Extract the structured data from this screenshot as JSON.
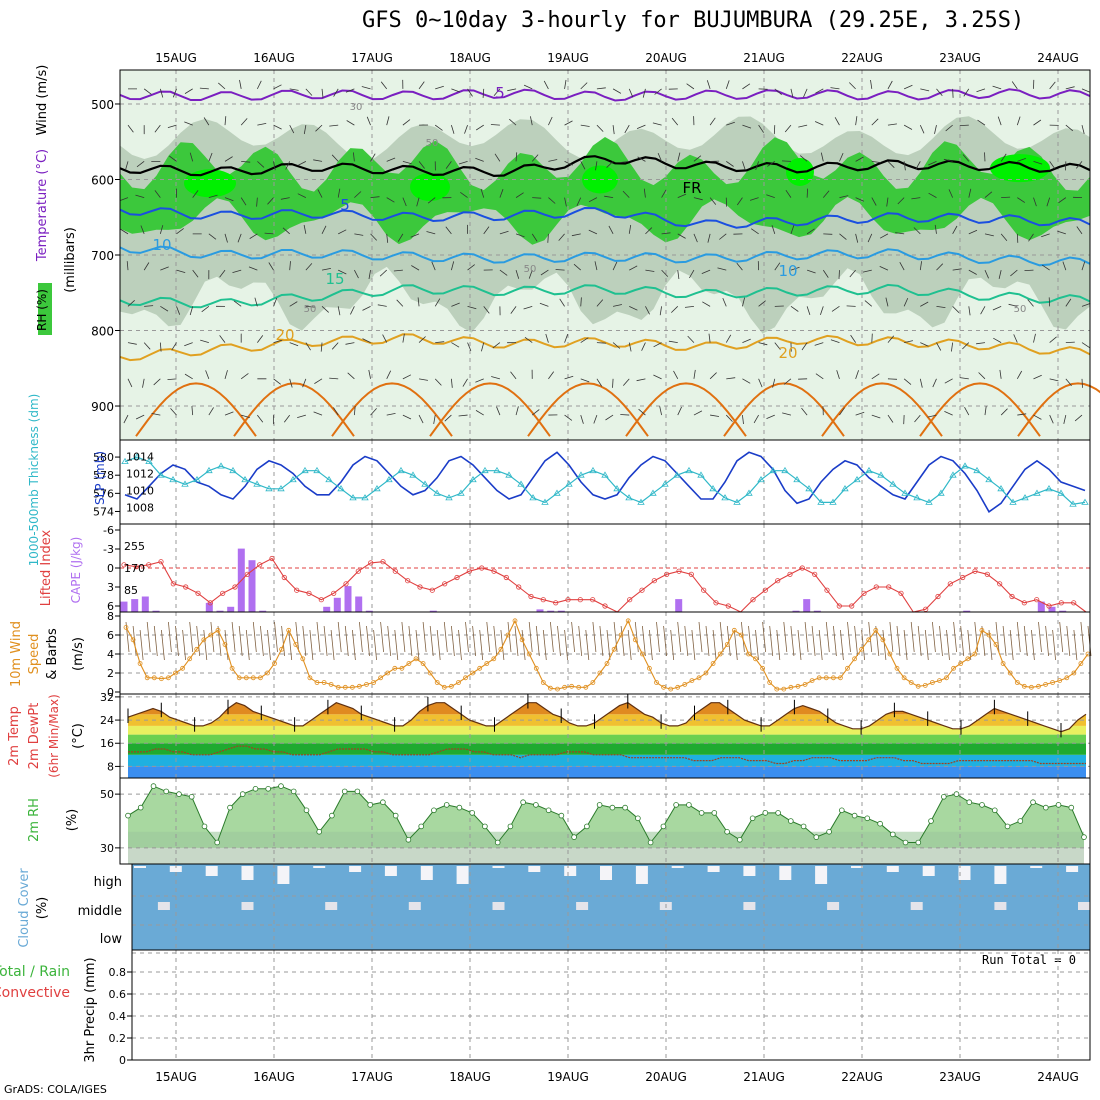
{
  "title": "GFS 0~10day 3-hourly for BUJUMBURA (29.25E, 3.25S)",
  "credit": "GrADS: COLA/IGES",
  "run_total": "Run Total = 0",
  "dates": [
    "15AUG",
    "16AUG",
    "17AUG",
    "18AUG",
    "19AUG",
    "20AUG",
    "21AUG",
    "22AUG",
    "23AUG",
    "24AUG"
  ],
  "colors": {
    "rh_light": "#e6f3e6",
    "rh_mid": "#bcd0bc",
    "rh_green": "#3cc83c",
    "rh_bright": "#00f000",
    "temp5": "#7a1fc0",
    "temp5b": "#1a4fe0",
    "temp10": "#2a9be0",
    "temp15": "#1fc090",
    "temp20": "#e0a020",
    "temp25": "#e07010",
    "slp": "#1a3cc8",
    "thick": "#30b8c8",
    "cape": "#b070f0",
    "li": "#e04040",
    "wind10": "#e09020",
    "rh2m": "#3cb43c",
    "cloud": "#6aaad6"
  },
  "chart_data": [
    {
      "type": "heatmap",
      "name": "upper-air-cross-section",
      "ylabel_rh": "RH (%)",
      "ylabel_temp": "Temperature (°C)",
      "ylabel_wind": "Wind (m/s)",
      "ylabel_axis": "(millibars)",
      "yticks": [
        500,
        600,
        700,
        800,
        900
      ],
      "ylim": [
        455,
        945
      ],
      "contour_labels": [
        "5",
        "5",
        "10",
        "10",
        "15",
        "20",
        "20",
        "FR",
        "30",
        "50",
        "50",
        "50",
        "50"
      ],
      "isotherms": [
        {
          "label": "5",
          "level_mb": [
            488,
            490,
            487,
            489,
            486,
            490,
            488,
            487,
            489,
            486,
            488
          ]
        },
        {
          "label": "FR",
          "level_mb": [
            585,
            590,
            583,
            588,
            590,
            572,
            582,
            585,
            580,
            582,
            586
          ]
        },
        {
          "label": "5",
          "level_mb": [
            640,
            648,
            645,
            650,
            648,
            642,
            660,
            655,
            650,
            652,
            658
          ]
        },
        {
          "label": "10",
          "level_mb": [
            690,
            700,
            698,
            702,
            705,
            702,
            705,
            700,
            698,
            706,
            710
          ]
        },
        {
          "label": "15",
          "level_mb": [
            760,
            765,
            755,
            745,
            748,
            745,
            752,
            748,
            745,
            755,
            760
          ]
        },
        {
          "label": "20",
          "level_mb": [
            835,
            825,
            815,
            810,
            818,
            815,
            822,
            812,
            815,
            820,
            830
          ]
        }
      ]
    },
    {
      "type": "line",
      "name": "sea-level-pressure-and-thickness",
      "ylabel_left": "1000-500mb Thickness (dm)",
      "ylabel_right": "SLP (mb)",
      "yticks_left": [
        574,
        576,
        578,
        580
      ],
      "yticks_right": [
        1008,
        1010,
        1012,
        1014
      ],
      "series": [
        {
          "name": "SLP",
          "axis": "right",
          "values": [
            1009.5,
            1009.0,
            1010.5,
            1012.0,
            1013.0,
            1012.5,
            1011.0,
            1010.5,
            1009.5,
            1009.0,
            1010.5,
            1012.5,
            1013.5,
            1013.0,
            1012.0,
            1010.5,
            1009.5,
            1009.5,
            1011.0,
            1013.0,
            1014.0,
            1013.5,
            1012.0,
            1010.5,
            1009.5,
            1010.0,
            1011.5,
            1013.5,
            1014.0,
            1013.0,
            1011.5,
            1010.0,
            1009.0,
            1009.5,
            1011.5,
            1013.5,
            1014.5,
            1013.0,
            1011.0,
            1009.5,
            1009.0,
            1009.5,
            1011.5,
            1013.0,
            1014.0,
            1013.5,
            1012.0,
            1010.5,
            1009.0,
            1009.0,
            1011.0,
            1013.5,
            1014.5,
            1014.0,
            1012.5,
            1010.0,
            1008.5,
            1009.0,
            1011.0,
            1012.5,
            1013.5,
            1013.0,
            1011.5,
            1010.5,
            1009.5,
            1009.0,
            1011.0,
            1013.0,
            1014.0,
            1013.5,
            1012.0,
            1010.0,
            1007.5,
            1008.5,
            1010.5,
            1012.5,
            1013.5,
            1012.5,
            1011.0,
            1010.5,
            1010.0
          ]
        },
        {
          "name": "Thickness",
          "axis": "left",
          "values": [
            579.5,
            580.0,
            579.5,
            578.0,
            577.5,
            577.0,
            577.5,
            578.5,
            579.0,
            578.5,
            577.5,
            577.0,
            576.5,
            576.5,
            577.5,
            578.5,
            578.5,
            577.5,
            576.5,
            575.5,
            575.5,
            576.5,
            577.5,
            578.5,
            578.0,
            577.0,
            576.0,
            575.5,
            576.0,
            577.5,
            578.5,
            578.5,
            578.0,
            577.0,
            575.5,
            575.0,
            576.0,
            577.0,
            578.0,
            578.5,
            578.0,
            576.5,
            575.5,
            575.0,
            576.0,
            577.0,
            578.0,
            578.5,
            578.0,
            576.5,
            575.5,
            575.0,
            576.0,
            577.5,
            578.5,
            578.5,
            577.5,
            576.5,
            575.0,
            575.0,
            576.5,
            577.5,
            578.5,
            578.0,
            577.0,
            576.0,
            575.5,
            575.0,
            576.0,
            578.0,
            579.0,
            578.5,
            577.5,
            576.5,
            575.0,
            575.5,
            576.0,
            576.5,
            576.0,
            574.8,
            575.0
          ]
        }
      ]
    },
    {
      "type": "bar",
      "name": "cape-and-lifted-index",
      "ylabel_left": "Lifted Index",
      "ylabel_right": "CAPE (J/kg)",
      "yticks_left": [
        "-6",
        "-3",
        "0",
        "3",
        "6"
      ],
      "yticks_right": [
        85,
        170,
        255
      ],
      "series": [
        {
          "name": "CAPE",
          "values": [
            40,
            50,
            60,
            5,
            0,
            0,
            0,
            0,
            35,
            5,
            20,
            245,
            200,
            5,
            0,
            0,
            0,
            0,
            0,
            20,
            55,
            100,
            60,
            5,
            0,
            0,
            0,
            0,
            0,
            5,
            0,
            0,
            0,
            0,
            0,
            0,
            0,
            0,
            0,
            10,
            5,
            5,
            0,
            0,
            0,
            0,
            0,
            0,
            0,
            0,
            0,
            0,
            50,
            0,
            0,
            0,
            0,
            0,
            0,
            0,
            0,
            0,
            0,
            5,
            50,
            5,
            0,
            0,
            0,
            0,
            0,
            0,
            0,
            0,
            0,
            0,
            0,
            0,
            0,
            5,
            0,
            0,
            0,
            0,
            0,
            0,
            40,
            20,
            5,
            0,
            0
          ]
        },
        {
          "name": "Lifted Index",
          "values": [
            -0.5,
            -0.2,
            -0.5,
            -1.0,
            2.5,
            3.0,
            4.0,
            5.5,
            4.0,
            3.0,
            1.0,
            -0.5,
            -1.5,
            1.5,
            3.5,
            4.0,
            5.0,
            4.0,
            2.5,
            0.5,
            -0.8,
            -1.0,
            0.5,
            2.0,
            3.0,
            3.5,
            2.5,
            1.5,
            0.5,
            0.0,
            0.5,
            1.5,
            3.0,
            4.5,
            5.0,
            5.5,
            5.0,
            5.0,
            5.0,
            6.0,
            7.0,
            5.0,
            3.5,
            2.0,
            1.0,
            0.5,
            1.0,
            3.5,
            5.5,
            6.0,
            7.0,
            5.0,
            3.5,
            2.0,
            1.0,
            0.0,
            1.0,
            3.5,
            6.0,
            6.0,
            4.0,
            3.0,
            3.0,
            4.0,
            7.5,
            6.5,
            4.5,
            2.5,
            1.5,
            0.5,
            1.0,
            2.5,
            4.5,
            5.5,
            5.0,
            6.0,
            5.5,
            5.5,
            7.0
          ]
        }
      ]
    },
    {
      "type": "line",
      "name": "10m-wind",
      "ylabel": "10m Wind Speed & Barbs (m/s)",
      "yticks": [
        0,
        2,
        4,
        6,
        8
      ],
      "ylim": [
        0,
        8
      ],
      "series": [
        {
          "name": "Wind speed",
          "values": [
            6.8,
            5.5,
            3.0,
            1.5,
            1.5,
            1.4,
            1.5,
            2.0,
            2.5,
            3.5,
            4.5,
            5.5,
            6.0,
            6.5,
            5.0,
            2.5,
            1.5,
            1.5,
            1.5,
            1.5,
            2.0,
            3.0,
            4.5,
            6.5,
            5.0,
            3.5,
            1.5,
            1.0,
            1.0,
            0.8,
            0.5,
            0.5,
            0.5,
            0.6,
            0.8,
            1.0,
            1.5,
            2.0,
            2.5,
            2.5,
            3.0,
            3.5,
            3.0,
            2.0,
            1.0,
            0.5,
            0.6,
            1.0,
            1.5,
            2.0,
            2.5,
            3.0,
            3.5,
            4.5,
            6.0,
            7.5,
            5.5,
            4.0,
            2.5,
            1.0,
            0.4,
            0.3,
            0.5,
            0.6,
            0.5,
            0.5,
            1.0,
            2.0,
            3.0,
            4.5,
            6.0,
            7.5,
            5.5,
            4.0,
            2.5,
            1.0,
            0.5,
            0.3,
            0.5,
            0.8,
            1.2,
            1.5,
            2.0,
            3.0,
            4.0,
            5.0,
            6.5,
            6.0,
            4.0,
            3.5,
            2.5,
            1.0,
            0.3,
            0.3,
            0.5,
            0.6,
            0.8,
            1.2,
            1.5,
            1.5,
            1.5,
            1.5,
            2.5,
            3.5,
            4.5,
            5.5,
            6.5,
            5.5,
            4.0,
            2.5,
            1.5,
            1.0,
            0.6,
            0.7,
            1.0,
            1.2,
            1.5,
            2.5,
            3.0,
            3.5,
            4.0,
            6.5,
            6.0,
            5.0,
            3.0,
            2.0,
            1.0,
            0.6,
            0.5,
            0.6,
            0.8,
            1.0,
            1.2,
            1.5,
            2.0,
            3.0,
            4.0
          ]
        }
      ]
    },
    {
      "type": "area",
      "name": "2m-temperature",
      "ylabel": "2m Temp 2m DewPt (6hr Min/Max) (°C)",
      "yticks": [
        8,
        16,
        24,
        32
      ],
      "ylim": [
        4,
        33
      ],
      "series": [
        {
          "name": "2m Temp",
          "values": [
            25,
            26,
            27,
            28,
            27,
            25,
            24,
            23,
            22,
            22,
            23,
            25,
            28,
            30,
            29,
            27,
            26,
            25,
            24,
            23,
            22,
            22,
            24,
            26,
            28,
            30,
            29,
            28,
            26,
            25,
            24,
            23,
            22,
            22,
            24,
            27,
            29,
            30,
            30,
            28,
            26,
            24,
            23,
            22,
            22,
            24,
            26,
            28,
            30,
            30,
            28,
            26,
            25,
            23,
            22,
            22,
            23,
            25,
            27,
            29,
            30,
            28,
            26,
            25,
            23,
            22,
            22,
            23,
            26,
            28,
            30,
            30,
            28,
            26,
            24,
            23,
            22,
            22,
            24,
            26,
            28,
            29,
            28,
            27,
            25,
            23,
            22,
            21,
            21,
            22,
            24,
            26,
            27,
            27,
            26,
            25,
            24,
            23,
            22,
            21,
            21,
            22,
            24,
            26,
            28,
            27,
            26,
            25,
            24,
            23,
            22,
            21,
            20,
            21,
            24,
            26
          ]
        },
        {
          "name": "2m DewPt",
          "values": [
            13,
            13,
            13,
            14,
            14,
            13,
            13,
            12,
            12,
            12,
            13,
            14,
            15,
            15,
            14,
            14,
            13,
            13,
            12,
            12,
            12,
            12,
            13,
            14,
            14,
            14,
            14,
            13,
            13,
            12,
            12,
            12,
            12,
            12,
            13,
            14,
            14,
            14,
            13,
            13,
            12,
            12,
            12,
            11,
            12,
            12,
            12,
            12,
            13,
            13,
            13,
            12,
            12,
            12,
            12,
            11,
            11,
            11,
            11,
            11,
            11,
            11,
            10,
            10,
            10,
            11,
            11,
            11,
            10,
            10,
            10,
            9,
            9,
            10,
            10,
            11,
            11,
            11,
            10,
            10,
            10,
            10,
            11,
            11,
            11,
            10,
            10,
            9,
            9,
            9,
            9,
            10,
            10,
            10,
            10,
            10,
            10,
            10,
            10,
            10,
            9,
            9,
            9,
            9,
            9,
            9
          ]
        }
      ]
    },
    {
      "type": "area",
      "name": "2m-relative-humidity",
      "ylabel": "2m RH (%)",
      "yticks": [
        30,
        50
      ],
      "ylim": [
        24,
        56
      ],
      "series": [
        {
          "name": "2m RH",
          "values": [
            42,
            45,
            53,
            51,
            50,
            49,
            38,
            32,
            45,
            50,
            52,
            52,
            53,
            51,
            44,
            36,
            42,
            51,
            51,
            46,
            47,
            42,
            33,
            38,
            44,
            46,
            45,
            43,
            38,
            32,
            38,
            47,
            46,
            44,
            42,
            34,
            38,
            46,
            45,
            45,
            41,
            32,
            38,
            46,
            46,
            43,
            43,
            36,
            33,
            41,
            43,
            43,
            40,
            38,
            34,
            36,
            44,
            42,
            41,
            39,
            35,
            32,
            32,
            40,
            49,
            50,
            47,
            46,
            44,
            38,
            40,
            47,
            45,
            46,
            45,
            34
          ]
        }
      ]
    },
    {
      "type": "heatmap",
      "name": "cloud-cover",
      "ylabel": "Cloud Cover (%)",
      "levels": [
        "high",
        "middle",
        "low"
      ]
    },
    {
      "type": "bar",
      "name": "3hr-precip",
      "ylabel": "3hr Precip (mm)",
      "ylabel_total": "Total / Rain",
      "ylabel_conv": "Convective",
      "yticks": [
        "0",
        "0.2",
        "0.4",
        "0.6",
        "0.8"
      ],
      "ylim": [
        0,
        1.0
      ],
      "series": [
        {
          "name": "Total precipitation",
          "values": []
        }
      ]
    }
  ]
}
